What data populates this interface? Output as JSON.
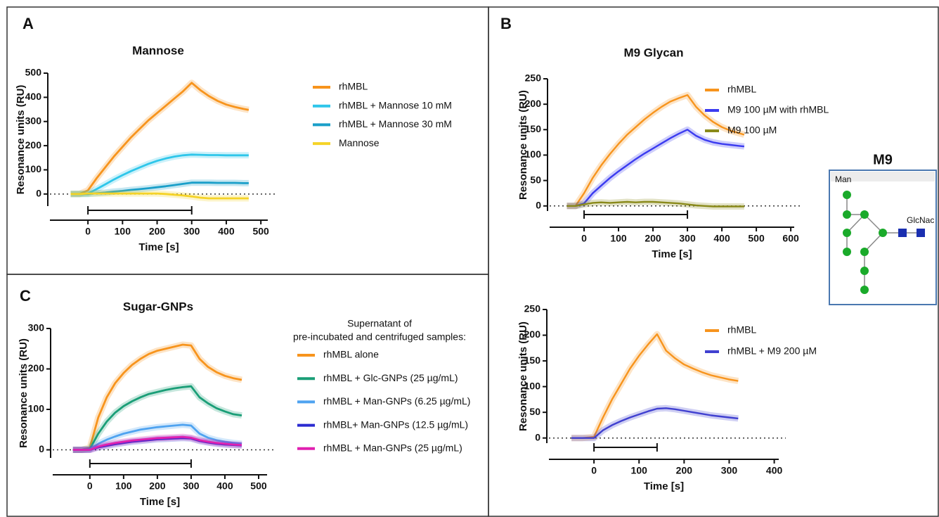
{
  "chart_data": [
    {
      "type": "line",
      "panel": "A",
      "title": "Mannose",
      "x_label": "Time [s]",
      "y_label": "Resonance units (RU)",
      "xlim": [
        -110,
        520
      ],
      "ylim": [
        -50,
        500
      ],
      "xticks": [
        0,
        100,
        200,
        300,
        400,
        500
      ],
      "yticks": [
        0,
        100,
        200,
        300,
        400,
        500
      ],
      "zero_line": true,
      "injection": [
        0,
        300
      ],
      "x": [
        -50,
        -25,
        0,
        25,
        50,
        75,
        100,
        125,
        150,
        175,
        200,
        225,
        250,
        275,
        300,
        325,
        350,
        375,
        400,
        425,
        450,
        465
      ],
      "series": [
        {
          "name": "rhMBL",
          "color": "#f7941d",
          "values": [
            0,
            0,
            15,
            65,
            110,
            155,
            195,
            235,
            270,
            305,
            335,
            365,
            395,
            425,
            460,
            430,
            405,
            385,
            370,
            360,
            352,
            348
          ]
        },
        {
          "name": "rhMBL + Mannose 10 mM",
          "color": "#2ec6ea",
          "values": [
            0,
            0,
            2,
            20,
            40,
            60,
            78,
            95,
            110,
            125,
            137,
            147,
            155,
            160,
            163,
            162,
            161,
            161,
            160,
            160,
            160,
            160
          ]
        },
        {
          "name": "rhMBL + Mannose 30 mM",
          "color": "#1a9fc9",
          "values": [
            0,
            0,
            0,
            3,
            6,
            10,
            13,
            17,
            20,
            24,
            28,
            32,
            37,
            42,
            47,
            47,
            47,
            46,
            46,
            46,
            45,
            45
          ]
        },
        {
          "name": "Mannose",
          "color": "#f5d327",
          "values": [
            0,
            0,
            2,
            2,
            2,
            2,
            2,
            2,
            2,
            2,
            2,
            0,
            -3,
            -6,
            -10,
            -15,
            -18,
            -18,
            -18,
            -18,
            -18,
            -18
          ]
        }
      ]
    },
    {
      "type": "line",
      "panel": "C",
      "title": "Sugar-GNPs",
      "x_label": "Time [s]",
      "y_label": "Resonance units (RU)",
      "legend_title": [
        "Supernatant of",
        "pre-incubated and centrifuged samples:"
      ],
      "xlim": [
        -110,
        525
      ],
      "ylim": [
        -20,
        300
      ],
      "xticks": [
        0,
        100,
        200,
        300,
        400,
        500
      ],
      "yticks": [
        0,
        100,
        200,
        300
      ],
      "zero_line": true,
      "injection": [
        0,
        300
      ],
      "x": [
        -50,
        -25,
        0,
        25,
        50,
        75,
        100,
        125,
        150,
        175,
        200,
        225,
        250,
        275,
        300,
        325,
        350,
        375,
        400,
        425,
        450
      ],
      "series": [
        {
          "name": "rhMBL alone",
          "color": "#f7941d",
          "values": [
            0,
            0,
            5,
            80,
            130,
            165,
            190,
            210,
            225,
            237,
            245,
            250,
            255,
            260,
            258,
            225,
            205,
            192,
            183,
            177,
            173
          ]
        },
        {
          "name": "rhMBL + Glc-GNPs (25 µg/mL)",
          "color": "#1a9e77",
          "values": [
            0,
            0,
            2,
            40,
            70,
            92,
            108,
            120,
            130,
            138,
            143,
            148,
            152,
            155,
            157,
            130,
            115,
            103,
            95,
            88,
            85
          ]
        },
        {
          "name": "rhMBL + Man-GNPs (6.25 µg/mL)",
          "color": "#4fa3f0",
          "values": [
            0,
            0,
            1,
            15,
            25,
            33,
            40,
            45,
            50,
            53,
            56,
            58,
            60,
            62,
            60,
            40,
            30,
            24,
            20,
            17,
            15
          ]
        },
        {
          "name": "rhMBL+ Man-GNPs (12.5 µg/mL)",
          "color": "#2b2bd1",
          "values": [
            0,
            0,
            0,
            6,
            10,
            14,
            17,
            20,
            22,
            24,
            26,
            27,
            28,
            29,
            28,
            22,
            18,
            15,
            13,
            12,
            11
          ]
        },
        {
          "name": "rhMBL + Man-GNPs (25 µg/mL)",
          "color": "#e020b0",
          "values": [
            0,
            0,
            0,
            8,
            13,
            17,
            20,
            23,
            25,
            27,
            29,
            30,
            31,
            32,
            30,
            24,
            20,
            17,
            15,
            13,
            12
          ]
        }
      ]
    },
    {
      "type": "line",
      "panel": "B",
      "title": "M9 Glycan",
      "x_label": "Time [s]",
      "y_label": "Resonance units (RU)",
      "xlim": [
        -100,
        610
      ],
      "ylim": [
        -10,
        250
      ],
      "xticks": [
        0,
        100,
        200,
        300,
        400,
        500,
        600
      ],
      "yticks": [
        0,
        50,
        100,
        150,
        200,
        250
      ],
      "zero_line": true,
      "injection": [
        0,
        300
      ],
      "x": [
        -50,
        -25,
        0,
        25,
        50,
        75,
        100,
        125,
        150,
        175,
        200,
        225,
        250,
        275,
        300,
        325,
        350,
        375,
        400,
        425,
        450,
        465
      ],
      "series": [
        {
          "name": "rhMBL",
          "color": "#f7941d",
          "values": [
            0,
            0,
            25,
            55,
            80,
            102,
            122,
            140,
            155,
            170,
            183,
            195,
            205,
            212,
            218,
            195,
            178,
            165,
            155,
            148,
            143,
            140
          ]
        },
        {
          "name": "M9 100 µM with rhMBL",
          "color": "#3b3bf0",
          "values": [
            0,
            0,
            5,
            25,
            40,
            55,
            68,
            80,
            92,
            103,
            113,
            123,
            133,
            142,
            150,
            138,
            130,
            125,
            122,
            120,
            118,
            117
          ]
        },
        {
          "name": "M9 100 µM",
          "color": "#8a8a1a",
          "values": [
            0,
            0,
            3,
            6,
            7,
            6,
            7,
            8,
            7,
            8,
            8,
            7,
            6,
            5,
            3,
            1,
            0,
            -1,
            -1,
            -1,
            -1,
            -1
          ]
        }
      ]
    },
    {
      "type": "line",
      "x_label": "Time [s]",
      "y_label": "Resonance units (RU)",
      "xlim": [
        -100,
        410
      ],
      "ylim": [
        -10,
        250
      ],
      "xticks": [
        0,
        100,
        200,
        300,
        400
      ],
      "yticks": [
        0,
        50,
        100,
        150,
        200,
        250
      ],
      "zero_line": true,
      "injection": [
        0,
        140
      ],
      "x": [
        -50,
        -25,
        0,
        20,
        40,
        60,
        80,
        100,
        120,
        140,
        160,
        180,
        200,
        220,
        240,
        260,
        280,
        300,
        320
      ],
      "series": [
        {
          "name": "rhMBL",
          "color": "#f7941d",
          "values": [
            0,
            0,
            2,
            40,
            75,
            105,
            135,
            160,
            182,
            202,
            170,
            155,
            143,
            135,
            128,
            122,
            118,
            114,
            111
          ]
        },
        {
          "name": "rhMBL + M9 200 µM",
          "color": "#4040d0",
          "values": [
            0,
            0,
            0,
            15,
            25,
            33,
            40,
            46,
            52,
            57,
            58,
            56,
            53,
            50,
            47,
            44,
            42,
            40,
            38
          ]
        }
      ]
    }
  ],
  "glycan": {
    "title": "M9",
    "residues": [
      "Man",
      "GlcNac"
    ]
  }
}
